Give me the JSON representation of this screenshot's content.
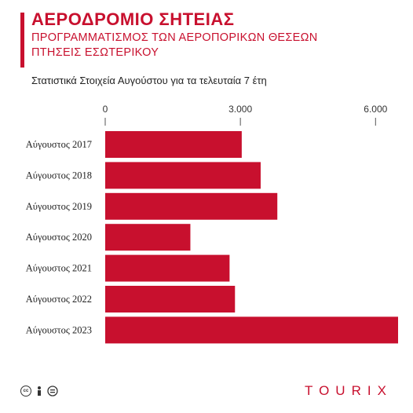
{
  "header": {
    "title": "ΑΕΡΟΔΡΟΜΙΟ ΣΗΤΕΙΑΣ",
    "subtitle_line1": "ΠΡΟΓΡΑΜΜΑΤΙΣΜΟΣ ΤΩΝ ΑΕΡΟΠΟΡΙΚΩΝ ΘΕΣΕΩΝ",
    "subtitle_line2": "ΠΤΗΣΕΙΣ ΕΣΩΤΕΡΙΚΟΥ",
    "caption": "Στατιστικά Στοιχεία Αυγούστου για τα τελευταία 7 έτη"
  },
  "footer": {
    "brand": "TOURIX",
    "license_icons": [
      "cc-icon",
      "by-person-icon",
      "nd-equals-icon"
    ]
  },
  "colors": {
    "accent": "#c8102e",
    "bar": "#c8102e",
    "text": "#222222"
  },
  "chart_data": {
    "type": "bar",
    "orientation": "horizontal",
    "categories": [
      "Αύγουστος 2017",
      "Αύγουστος 2018",
      "Αύγουστος 2019",
      "Αύγουστος 2020",
      "Αύγουστος 2021",
      "Αύγουστος 2022",
      "Αύγουστος 2023"
    ],
    "values": [
      3030,
      3450,
      3820,
      1890,
      2760,
      2880,
      6500
    ],
    "xticks": [
      0,
      3000,
      6000
    ],
    "xtick_labels": [
      "0",
      "3.000",
      "6.000"
    ],
    "xlim": [
      0,
      6500
    ],
    "grid": false,
    "title": "",
    "xlabel": "",
    "ylabel": ""
  }
}
